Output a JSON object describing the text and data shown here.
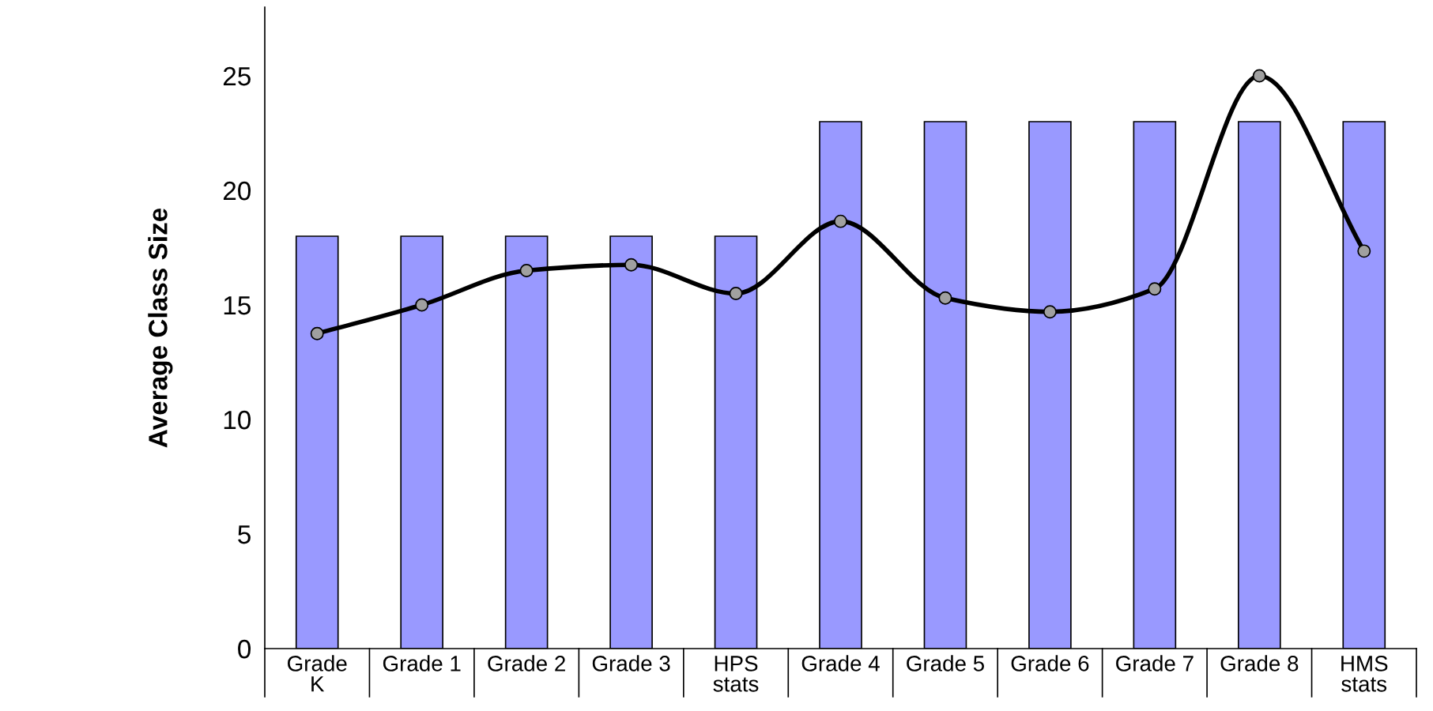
{
  "chart_data": {
    "type": "bar",
    "ylabel": "Average Class Size",
    "categories": [
      "Grade\nK",
      "Grade 1",
      "Grade 2",
      "Grade 3",
      "HPS\nstats",
      "Grade 4",
      "Grade 5",
      "Grade 6",
      "Grade 7",
      "Grade 8",
      "HMS\nstats"
    ],
    "series": [
      {
        "color": "#9999ff",
        "values": [
          18,
          18,
          18,
          18,
          18,
          23,
          23,
          23,
          23,
          23,
          23
        ]
      },
      {
        "type": "line",
        "color": "#000000",
        "marker": "circle",
        "line_style": "solid",
        "values": [
          13.75,
          15.0,
          16.5,
          16.75,
          15.5,
          18.65,
          15.3,
          14.7,
          15.7,
          25.0,
          17.35
        ]
      }
    ],
    "ylim": [
      0,
      28
    ],
    "yticks": [
      0,
      5,
      10,
      15,
      20,
      25
    ],
    "grid": false,
    "legend": false
  }
}
